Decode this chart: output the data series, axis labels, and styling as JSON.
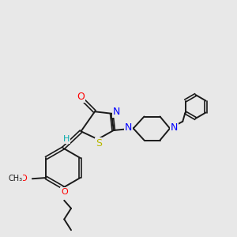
{
  "bg_color": "#e8e8e8",
  "bond_color": "#1a1a1a",
  "N_color": "#0000ff",
  "O_color": "#ff0000",
  "S_color": "#b8b800",
  "H_color": "#00aaaa",
  "figsize": [
    3.0,
    3.0
  ],
  "dpi": 100,
  "xlim": [
    0,
    12
  ],
  "ylim": [
    0,
    12
  ]
}
